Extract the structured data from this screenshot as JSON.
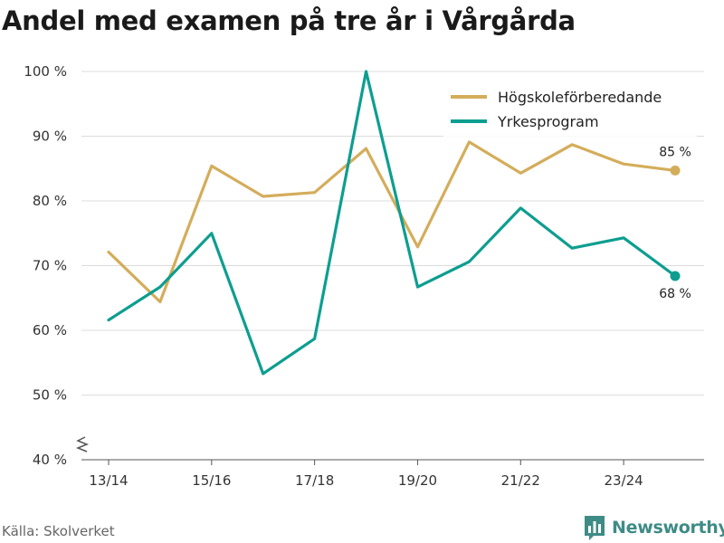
{
  "chart_data": {
    "type": "line",
    "title": "Andel med examen på tre år i Vårgårda",
    "xlabel": "",
    "ylabel": "",
    "x_tick_labels": [
      "13/14",
      "15/16",
      "17/18",
      "19/20",
      "21/22",
      "23/24"
    ],
    "x": [
      "13/14",
      "14/15",
      "15/16",
      "16/17",
      "17/18",
      "18/19",
      "19/20",
      "20/21",
      "21/22",
      "22/23",
      "23/24",
      "24/25"
    ],
    "y_ticks": [
      "40 %",
      "50 %",
      "60 %",
      "70 %",
      "80 %",
      "90 %",
      "100 %"
    ],
    "ylim": [
      40,
      100
    ],
    "grid": "horizontal",
    "legend_position": "top-right",
    "series": [
      {
        "name": "Högskoleförberedande",
        "color": "#d4ad5b",
        "values": [
          72.1,
          64.4,
          85.4,
          80.7,
          81.3,
          88.1,
          72.9,
          89.1,
          84.3,
          88.7,
          85.7,
          84.7
        ],
        "end_label": "85 %"
      },
      {
        "name": "Yrkesprogram",
        "color": "#0d9e90",
        "values": [
          61.6,
          66.7,
          75.0,
          53.3,
          58.7,
          100.0,
          66.7,
          70.6,
          78.9,
          72.7,
          74.3,
          68.4
        ],
        "end_label": "68 %"
      }
    ]
  },
  "source": "Källa: Skolverket",
  "brand": {
    "name": "Newsworthy",
    "icon": "bar-chart-logo-icon",
    "color": "#3f8b86"
  }
}
